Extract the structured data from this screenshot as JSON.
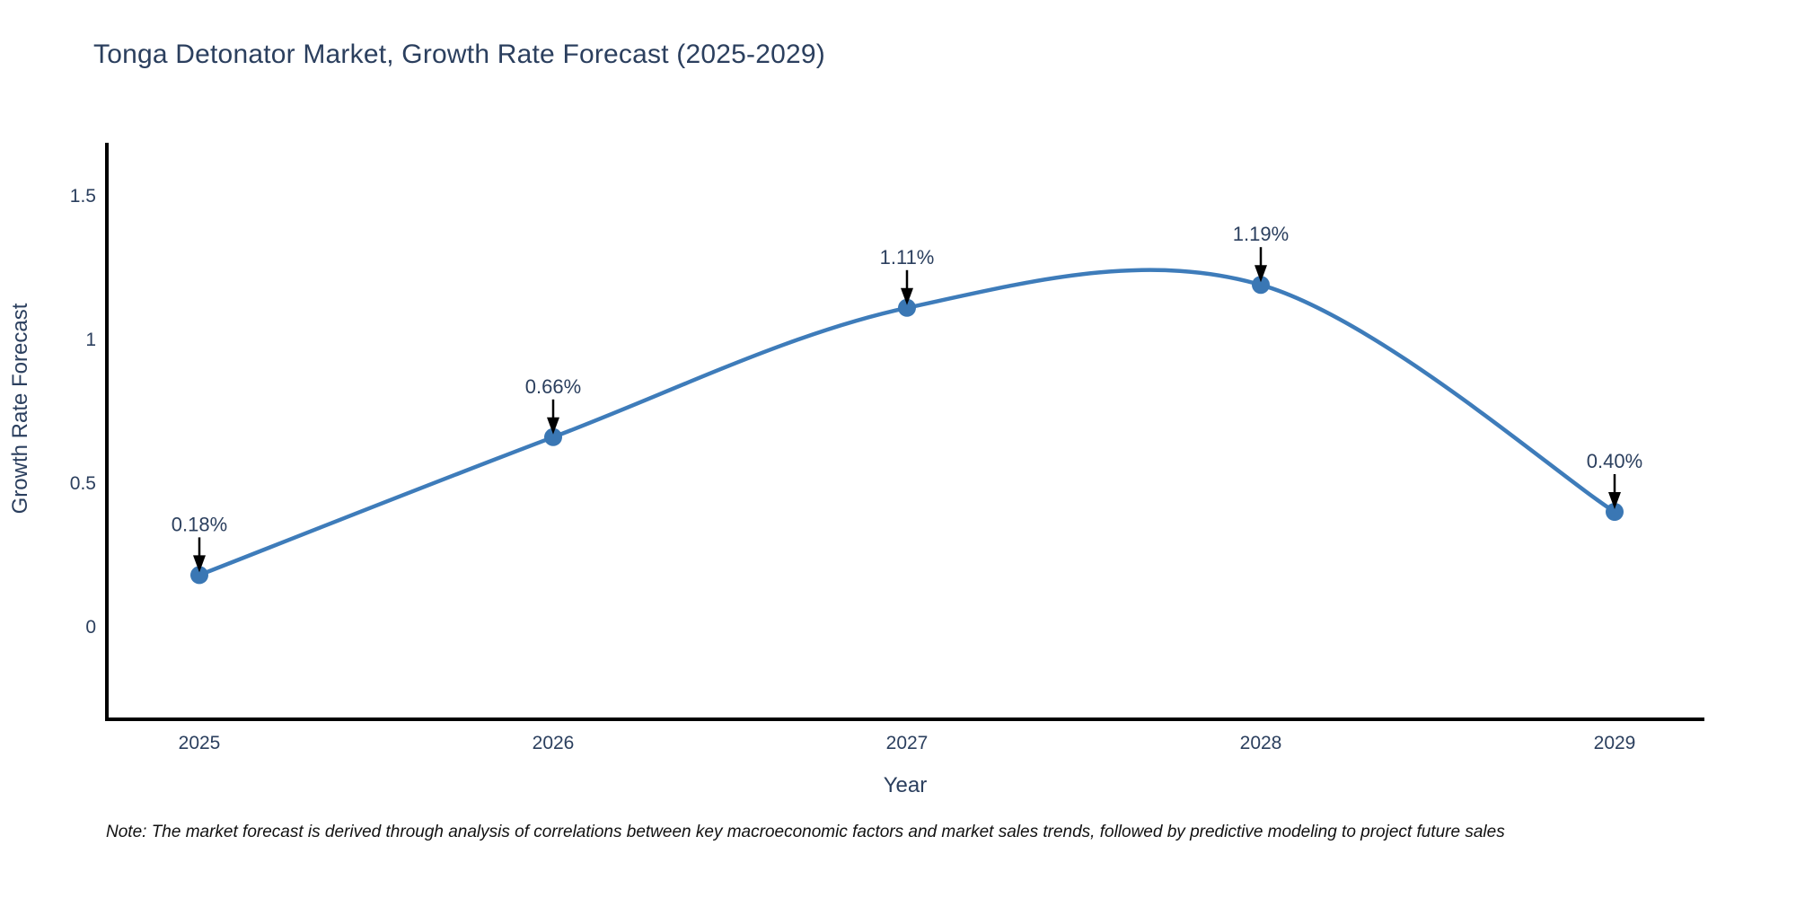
{
  "title": "Tonga Detonator Market, Growth Rate Forecast (2025-2029)",
  "note": "Note: The market forecast is derived through analysis of correlations between key macroeconomic factors and market sales trends, followed by predictive modeling to project future sales",
  "chart_data": {
    "type": "line",
    "title": "Tonga Detonator Market, Growth Rate Forecast (2025-2029)",
    "xlabel": "Year",
    "ylabel": "Growth Rate Forecast",
    "categories": [
      2025,
      2026,
      2027,
      2028,
      2029
    ],
    "series": [
      {
        "name": "Growth Rate Forecast",
        "values": [
          0.18,
          0.66,
          1.11,
          1.19,
          0.4
        ]
      }
    ],
    "point_labels": [
      "0.18%",
      "0.66%",
      "1.11%",
      "1.19%",
      "0.40%"
    ],
    "yticks": [
      0,
      0.5,
      1,
      1.5
    ],
    "ylim": [
      -0.32,
      1.69
    ],
    "line_shape": "spline",
    "grid": false,
    "legend": "none",
    "colors": {
      "line": "#3e7cba",
      "marker": "#3a77b4",
      "axis": "#000000",
      "text": "#2b3f5e",
      "annotation_arrow": "#000000"
    }
  }
}
